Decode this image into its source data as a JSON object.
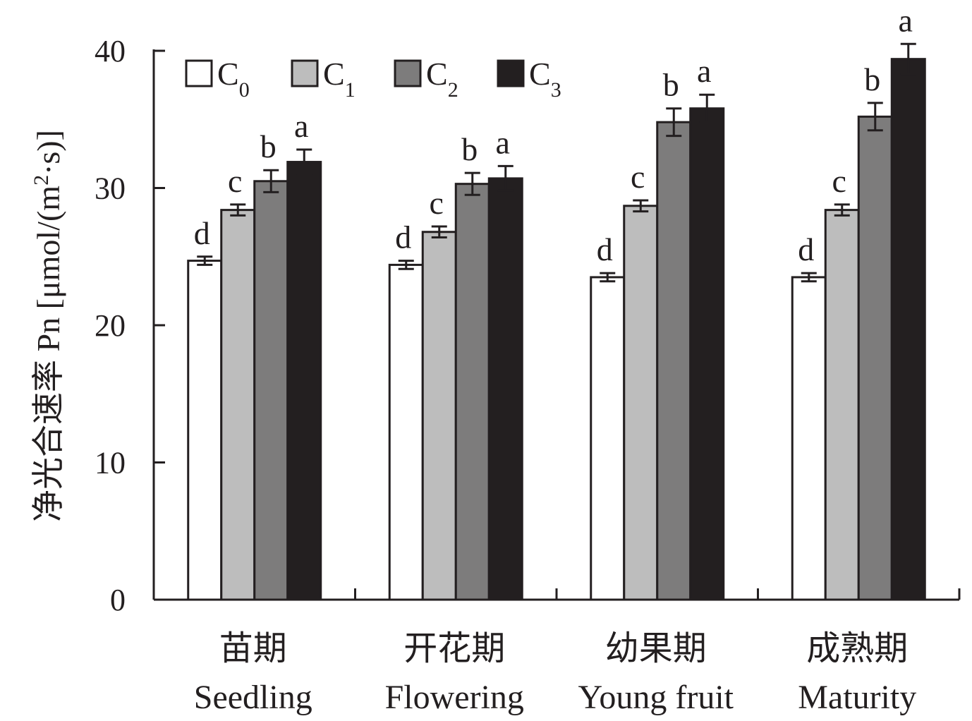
{
  "chart_data": {
    "type": "bar",
    "ylabel": "净光合速率 Pn [μmol/(m²·s)]",
    "ylabel_parts": {
      "text": "净光合速率 Pn [μmol/(m",
      "sup": "2",
      "tail": "·s)]"
    },
    "ylim": [
      0,
      40
    ],
    "yticks": [
      0,
      10,
      20,
      30,
      40
    ],
    "categories": [
      {
        "cn": "苗期",
        "en": "Seedling"
      },
      {
        "cn": "开花期",
        "en": "Flowering"
      },
      {
        "cn": "幼果期",
        "en": "Young fruit"
      },
      {
        "cn": "成熟期",
        "en": "Maturity"
      }
    ],
    "series": [
      {
        "name": "C0",
        "base": "C",
        "sub": "0",
        "color": "#ffffff",
        "values": [
          24.7,
          24.4,
          23.5,
          23.5
        ],
        "errors": [
          0.3,
          0.3,
          0.3,
          0.3
        ],
        "letters": [
          "d",
          "d",
          "d",
          "d"
        ]
      },
      {
        "name": "C1",
        "base": "C",
        "sub": "1",
        "color": "#bdbdbd",
        "values": [
          28.4,
          26.8,
          28.7,
          28.4
        ],
        "errors": [
          0.4,
          0.4,
          0.4,
          0.4
        ],
        "letters": [
          "c",
          "c",
          "c",
          "c"
        ]
      },
      {
        "name": "C2",
        "base": "C",
        "sub": "2",
        "color": "#7d7c7c",
        "values": [
          30.5,
          30.3,
          34.8,
          35.2
        ],
        "errors": [
          0.8,
          0.8,
          1.0,
          1.0
        ],
        "letters": [
          "b",
          "b",
          "b",
          "b"
        ]
      },
      {
        "name": "C3",
        "base": "C",
        "sub": "3",
        "color": "#231f20",
        "values": [
          31.9,
          30.7,
          35.8,
          39.4
        ],
        "errors": [
          0.9,
          0.9,
          1.0,
          1.1
        ],
        "letters": [
          "a",
          "a",
          "a",
          "a"
        ]
      }
    ],
    "legend_position": "top-left"
  }
}
